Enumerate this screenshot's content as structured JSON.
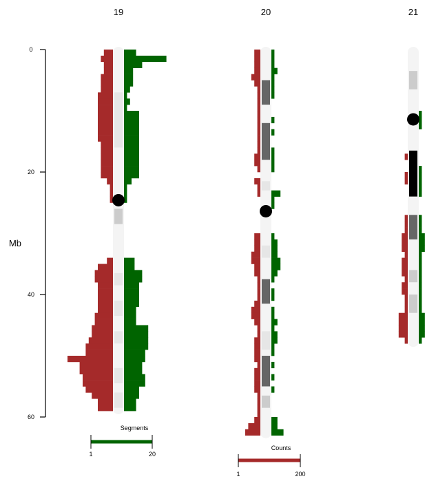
{
  "chart_data": {
    "type": "ideogram-histogram",
    "y_axis": {
      "label": "Mb",
      "ticks": [
        0,
        20,
        40,
        60
      ],
      "range": [
        0,
        60
      ]
    },
    "colors": {
      "segments": "#006400",
      "counts": "#a52a2a",
      "centromere": "#000000",
      "chromosome_bg": "#f4f4f4"
    },
    "legends": {
      "segments": {
        "title": "Segments",
        "min_label": "1",
        "max_label": "20",
        "color": "#006400"
      },
      "counts": {
        "title": "Counts",
        "min_label": "1",
        "max_label": "200",
        "color": "#a52a2a"
      }
    },
    "chromosomes": [
      {
        "name": "19",
        "length_mb": 59.1,
        "centromere_mb": 24.6,
        "bands": [
          {
            "start": 7,
            "end": 16,
            "shade": "#e6e6e6"
          },
          {
            "start": 26,
            "end": 28.5,
            "shade": "#cccccc"
          },
          {
            "start": 36.5,
            "end": 38.5,
            "shade": "#e6e6e6"
          },
          {
            "start": 41,
            "end": 43.5,
            "shade": "#e6e6e6"
          },
          {
            "start": 46,
            "end": 48,
            "shade": "#e6e6e6"
          },
          {
            "start": 52,
            "end": 54.5,
            "shade": "#e6e6e6"
          },
          {
            "start": 56,
            "end": 58.5,
            "shade": "#e6e6e6"
          }
        ],
        "bins_start_mb": 0,
        "bin_mb": 1,
        "segments": [
          8,
          28,
          12,
          6,
          6,
          6,
          4,
          2,
          4,
          2,
          10,
          10,
          10,
          10,
          10,
          10,
          10,
          10,
          10,
          10,
          10,
          5,
          2,
          2,
          2,
          0,
          0,
          0,
          0,
          0,
          0,
          0,
          0,
          0,
          7,
          7,
          12,
          12,
          10,
          10,
          10,
          10,
          8,
          8,
          8,
          16,
          16,
          16,
          16,
          14,
          14,
          12,
          12,
          14,
          14,
          10,
          10,
          8,
          8
        ],
        "counts": [
          6,
          8,
          6,
          6,
          8,
          8,
          8,
          10,
          10,
          10,
          10,
          10,
          10,
          10,
          10,
          8,
          8,
          8,
          8,
          8,
          8,
          4,
          2,
          2,
          2,
          0,
          0,
          0,
          0,
          0,
          0,
          0,
          0,
          0,
          4,
          10,
          12,
          12,
          10,
          10,
          10,
          10,
          10,
          12,
          12,
          14,
          14,
          16,
          18,
          18,
          30,
          22,
          22,
          20,
          20,
          18,
          14,
          10,
          10
        ]
      },
      {
        "name": "20",
        "length_mb": 63.0,
        "centromere_mb": 26.4,
        "bands": [
          {
            "start": 5,
            "end": 9,
            "shade": "#666666"
          },
          {
            "start": 12,
            "end": 18,
            "shade": "#666666"
          },
          {
            "start": 21.5,
            "end": 23,
            "shade": "#e6e6e6"
          },
          {
            "start": 32,
            "end": 34,
            "shade": "#e6e6e6"
          },
          {
            "start": 37.5,
            "end": 41.5,
            "shade": "#666666"
          },
          {
            "start": 46,
            "end": 49,
            "shade": "#e6e6e6"
          },
          {
            "start": 50,
            "end": 55,
            "shade": "#666666"
          },
          {
            "start": 56.5,
            "end": 58.5,
            "shade": "#cccccc"
          }
        ],
        "bins_start_mb": 0,
        "bin_mb": 1,
        "segments": [
          2,
          2,
          2,
          4,
          2,
          2,
          2,
          2,
          0,
          0,
          0,
          2,
          0,
          2,
          0,
          0,
          2,
          2,
          2,
          2,
          0,
          0,
          0,
          6,
          2,
          2,
          0,
          0,
          0,
          0,
          2,
          4,
          4,
          4,
          6,
          6,
          4,
          2,
          0,
          2,
          2,
          0,
          2,
          2,
          4,
          2,
          4,
          4,
          2,
          2,
          0,
          2,
          0,
          2,
          0,
          2,
          0,
          0,
          0,
          0,
          4,
          4,
          8
        ],
        "counts": [
          4,
          4,
          4,
          4,
          6,
          4,
          2,
          2,
          2,
          2,
          2,
          2,
          2,
          2,
          2,
          2,
          2,
          4,
          4,
          2,
          0,
          4,
          2,
          2,
          0,
          0,
          0,
          0,
          0,
          0,
          4,
          4,
          4,
          6,
          6,
          4,
          4,
          2,
          2,
          2,
          2,
          4,
          6,
          6,
          4,
          2,
          2,
          4,
          4,
          4,
          4,
          2,
          4,
          4,
          4,
          4,
          2,
          2,
          2,
          2,
          4,
          8,
          10
        ]
      },
      {
        "name": "21",
        "length_mb": 48.1,
        "centromere_mb": 11.4,
        "bands": [
          {
            "start": 3.5,
            "end": 6.5,
            "shade": "#cccccc"
          },
          {
            "start": 16.5,
            "end": 24,
            "shade": "#000000"
          },
          {
            "start": 27,
            "end": 31,
            "shade": "#666666"
          },
          {
            "start": 36,
            "end": 38,
            "shade": "#cccccc"
          },
          {
            "start": 40,
            "end": 43,
            "shade": "#cccccc"
          }
        ],
        "bins_start_mb": 9,
        "bin_mb": 1,
        "segments": [
          0,
          2,
          2,
          2,
          0,
          0,
          0,
          0,
          0,
          0,
          2,
          2,
          2,
          2,
          2,
          0,
          0,
          0,
          2,
          2,
          2,
          4,
          4,
          4,
          2,
          2,
          2,
          2,
          2,
          2,
          2,
          2,
          2,
          2,
          4,
          4,
          4,
          4,
          2
        ],
        "counts": [
          0,
          0,
          0,
          0,
          0,
          0,
          0,
          0,
          2,
          0,
          0,
          2,
          2,
          0,
          0,
          0,
          0,
          0,
          2,
          2,
          2,
          4,
          4,
          4,
          2,
          4,
          4,
          4,
          2,
          4,
          4,
          2,
          2,
          2,
          6,
          6,
          6,
          6,
          2
        ]
      }
    ]
  }
}
